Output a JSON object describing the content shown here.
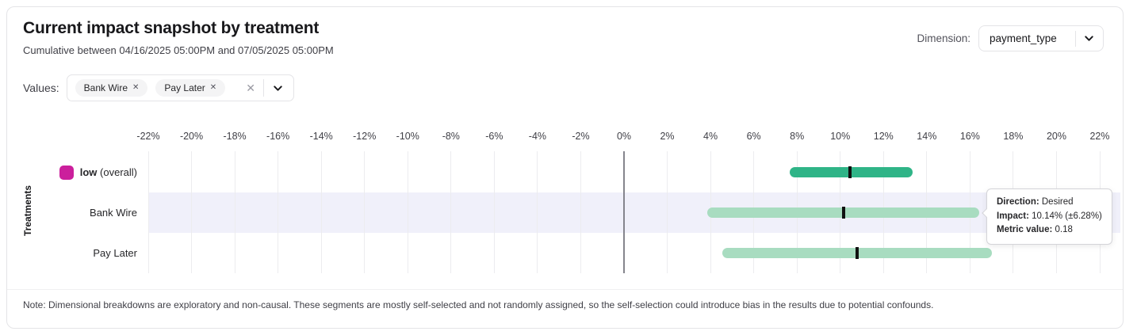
{
  "card": {
    "title": "Current impact snapshot by treatment",
    "subtitle": "Cumulative between 04/16/2025 05:00PM and 07/05/2025 05:00PM",
    "note": "Note: Dimensional breakdowns are exploratory and non-causal. These segments are mostly self-selected and not randomly assigned, so the self-selection could introduce bias in the results due to potential confounds."
  },
  "dimension": {
    "label": "Dimension:",
    "selected": "payment_type",
    "chevron_icon": "chevron-down"
  },
  "values_filter": {
    "label": "Values:",
    "chips": [
      {
        "label": "Bank Wire",
        "remove_icon": "x"
      },
      {
        "label": "Pay Later",
        "remove_icon": "x"
      }
    ],
    "clear_icon": "x",
    "expand_icon": "chevron-down"
  },
  "chart_data": {
    "type": "interval-bar",
    "ylabel": "Treatments",
    "x_axis": {
      "min": -22,
      "max": 22,
      "tick_step": 2,
      "tick_suffix": "%",
      "grid": true
    },
    "rows": [
      {
        "label": "low",
        "label_suffix": " (overall)",
        "legend_color": "#cb1f9c",
        "bar_color": "#2fb487",
        "impact_pct": 10.45,
        "lower_pct": 7.66,
        "upper_pct": 13.35,
        "highlighted": false
      },
      {
        "label": "Bank Wire",
        "bar_color": "#a8dcc0",
        "impact_pct": 10.14,
        "lower_pct": 3.86,
        "upper_pct": 16.42,
        "highlighted": true
      },
      {
        "label": "Pay Later",
        "bar_color": "#a8dcc0",
        "impact_pct": 10.78,
        "lower_pct": 4.55,
        "upper_pct": 17.02,
        "highlighted": false
      }
    ],
    "marker_color": "#111111",
    "highlight_band_color": "#f0f0fa"
  },
  "tooltip": {
    "direction_label": "Direction:",
    "direction_value": "Desired",
    "impact_label": "Impact:",
    "impact_value": "10.14% (±6.28%)",
    "metric_label": "Metric value:",
    "metric_value": "0.18"
  }
}
